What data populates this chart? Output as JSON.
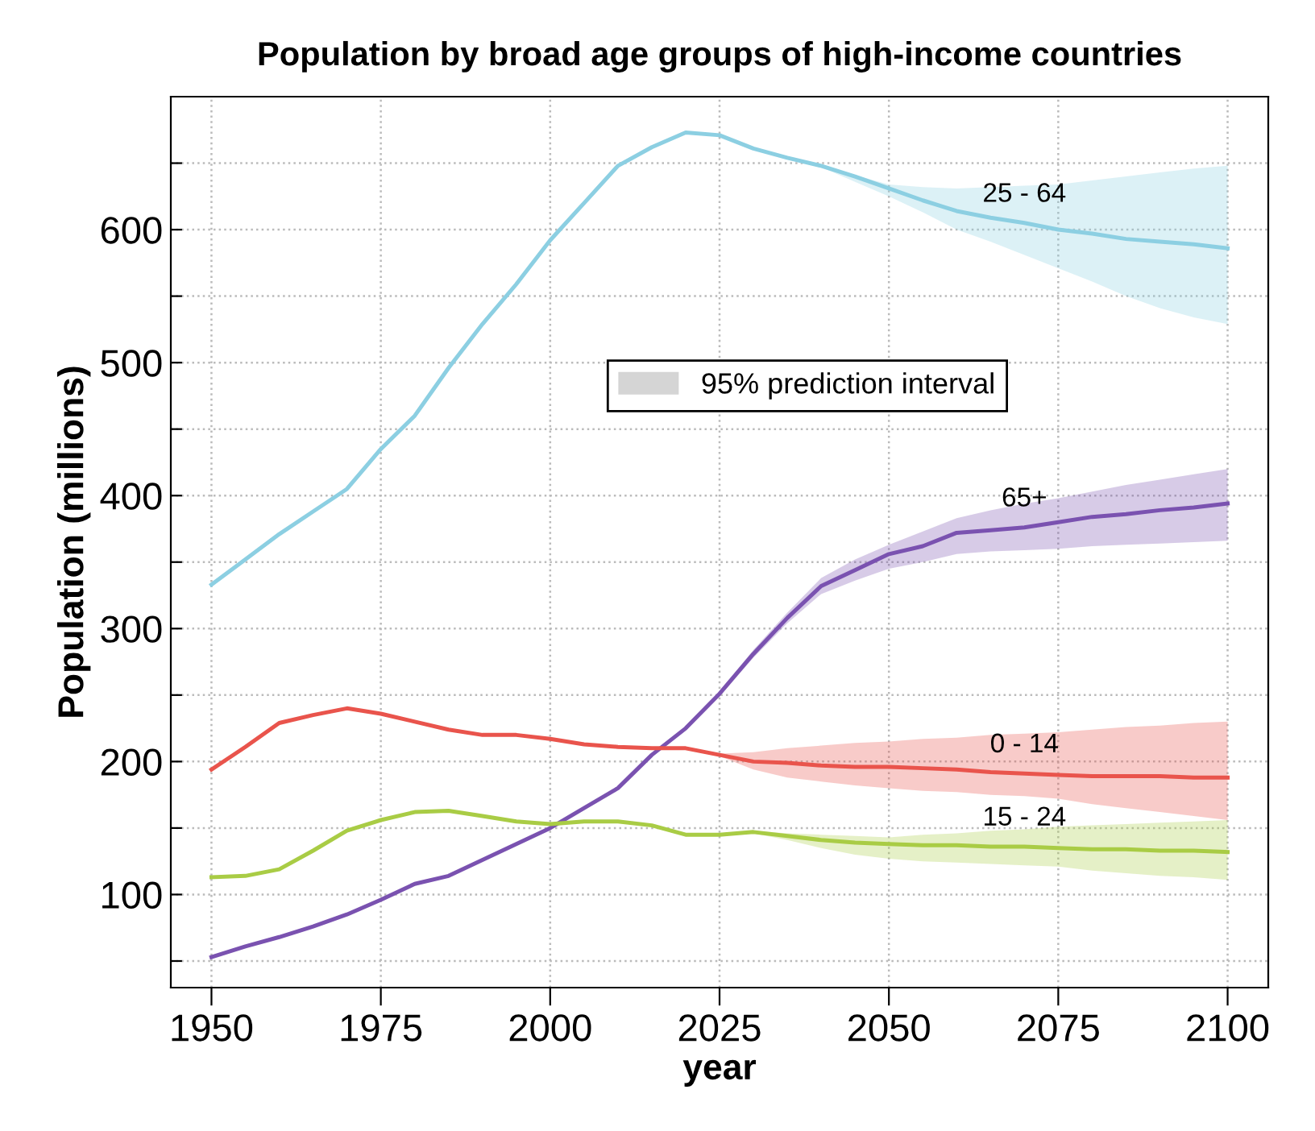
{
  "chart_data": {
    "type": "line",
    "title": "Population by broad age groups of high-income countries",
    "xlabel": "year",
    "ylabel": "Population (millions)",
    "x": [
      1950,
      1955,
      1960,
      1965,
      1970,
      1975,
      1980,
      1985,
      1990,
      1995,
      2000,
      2005,
      2010,
      2015,
      2020,
      2025,
      2030,
      2035,
      2040,
      2045,
      2050,
      2055,
      2060,
      2065,
      2070,
      2075,
      2080,
      2085,
      2090,
      2095,
      2100
    ],
    "series": [
      {
        "name": "25 - 64",
        "color": "#8ccfe2",
        "values": [
          333,
          352,
          371,
          388,
          405,
          435,
          460,
          496,
          529,
          559,
          592,
          620,
          648,
          662,
          673,
          671,
          661,
          654,
          648,
          640,
          631,
          622,
          614,
          609,
          605,
          600,
          597,
          593,
          591,
          589,
          586
        ],
        "lower": [
          null,
          null,
          null,
          null,
          null,
          null,
          null,
          null,
          null,
          null,
          null,
          null,
          null,
          null,
          null,
          671,
          661,
          654,
          647,
          636,
          625,
          613,
          600,
          591,
          581,
          571,
          561,
          550,
          541,
          534,
          529
        ],
        "upper": [
          null,
          null,
          null,
          null,
          null,
          null,
          null,
          null,
          null,
          null,
          null,
          null,
          null,
          null,
          null,
          671,
          661,
          654,
          648,
          641,
          634,
          632,
          631,
          632,
          633,
          634,
          637,
          640,
          643,
          646,
          648
        ]
      },
      {
        "name": "65+",
        "color": "#7a52b0",
        "values": [
          53,
          61,
          68,
          76,
          85,
          96,
          108,
          114,
          126,
          138,
          150,
          165,
          180,
          205,
          225,
          251,
          281,
          308,
          332,
          344,
          356,
          362,
          372,
          374,
          376,
          380,
          384,
          386,
          389,
          391,
          394
        ],
        "lower": [
          null,
          null,
          null,
          null,
          null,
          null,
          null,
          null,
          null,
          null,
          null,
          null,
          null,
          null,
          null,
          249,
          278,
          304,
          326,
          336,
          345,
          350,
          356,
          358,
          359,
          360,
          362,
          363,
          364,
          365,
          366
        ],
        "upper": [
          null,
          null,
          null,
          null,
          null,
          null,
          null,
          null,
          null,
          null,
          null,
          null,
          null,
          null,
          null,
          253,
          284,
          312,
          338,
          352,
          363,
          373,
          383,
          389,
          394,
          398,
          403,
          408,
          412,
          416,
          420
        ]
      },
      {
        "name": "0 - 14",
        "color": "#e9544c",
        "values": [
          194,
          211,
          229,
          235,
          240,
          236,
          230,
          224,
          220,
          220,
          217,
          213,
          211,
          210,
          210,
          205,
          200,
          199,
          197,
          196,
          196,
          195,
          194,
          192,
          191,
          190,
          189,
          189,
          189,
          188,
          188
        ],
        "lower": [
          null,
          null,
          null,
          null,
          null,
          null,
          null,
          null,
          null,
          null,
          null,
          null,
          null,
          null,
          null,
          204,
          194,
          188,
          185,
          182,
          180,
          178,
          177,
          175,
          174,
          172,
          168,
          165,
          162,
          159,
          156
        ],
        "upper": [
          null,
          null,
          null,
          null,
          null,
          null,
          null,
          null,
          null,
          null,
          null,
          null,
          null,
          null,
          null,
          206,
          207,
          210,
          212,
          214,
          215,
          217,
          218,
          220,
          221,
          222,
          224,
          226,
          227,
          229,
          230
        ]
      },
      {
        "name": "15 - 24",
        "color": "#a9cc45",
        "values": [
          113,
          114,
          119,
          133,
          148,
          156,
          162,
          163,
          159,
          155,
          153,
          155,
          155,
          152,
          145,
          145,
          147,
          144,
          141,
          139,
          138,
          137,
          137,
          136,
          136,
          135,
          134,
          134,
          133,
          133,
          132
        ],
        "lower": [
          null,
          null,
          null,
          null,
          null,
          null,
          null,
          null,
          null,
          null,
          null,
          null,
          null,
          null,
          null,
          null,
          146,
          141,
          135,
          130,
          127,
          125,
          124,
          123,
          122,
          121,
          118,
          116,
          114,
          113,
          111
        ],
        "upper": [
          null,
          null,
          null,
          null,
          null,
          null,
          null,
          null,
          null,
          null,
          null,
          null,
          null,
          null,
          null,
          null,
          148,
          146,
          145,
          144,
          143,
          145,
          146,
          148,
          149,
          151,
          152,
          153,
          154,
          155,
          156
        ]
      }
    ],
    "annotations": [
      "95% prediction interval"
    ],
    "xlim": [
      1944,
      2106
    ],
    "xticks": [
      1950,
      1975,
      2000,
      2025,
      2050,
      2075,
      2100
    ],
    "ylim": [
      30,
      700
    ],
    "yticks": [
      {
        "value": 50,
        "label": null
      },
      100,
      {
        "value": 150,
        "label": null
      },
      200,
      {
        "value": 250,
        "label": null
      },
      300,
      {
        "value": 350,
        "label": null
      },
      400,
      {
        "value": 450,
        "label": null
      },
      500,
      {
        "value": 550,
        "label": null
      },
      600,
      {
        "value": 650,
        "label": null
      }
    ],
    "grid": true,
    "legend": "top",
    "line_style": "solid",
    "marker": "none"
  }
}
